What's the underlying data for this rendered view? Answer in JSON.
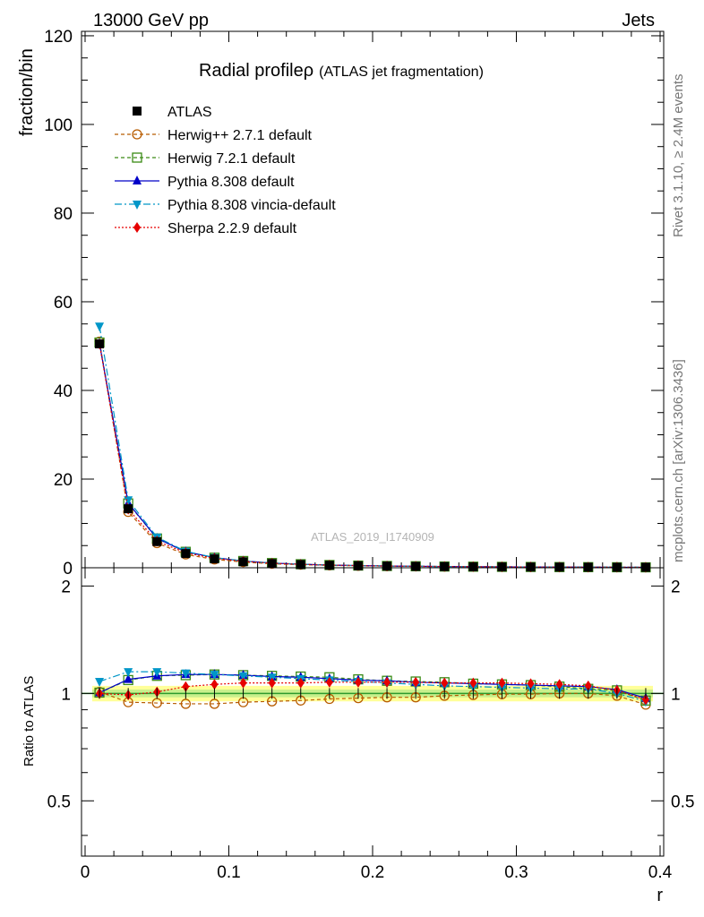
{
  "header": {
    "energy": "13000 GeV pp",
    "process": "Jets"
  },
  "side_labels": {
    "rivet": "Rivet 3.1.10, ≥ 2.4M events",
    "mcplots": "mcplots.cern.ch [arXiv:1306.3436]"
  },
  "watermark": "ATLAS_2019_I1740909",
  "chart_data": {
    "type": "line",
    "title": "Radial profile",
    "title_symbol": "ρ",
    "subtitle": "(ATLAS jet fragmentation)",
    "xlabel": "r",
    "xlim": [
      -0.0025,
      0.4025
    ],
    "x_ticks": [
      "0",
      "0.1",
      "0.2",
      "0.3",
      "0.4"
    ],
    "x": [
      0.01,
      0.03,
      0.05,
      0.07,
      0.09,
      0.11,
      0.13,
      0.15,
      0.17,
      0.19,
      0.21,
      0.23,
      0.25,
      0.27,
      0.29,
      0.31,
      0.33,
      0.35,
      0.37,
      0.39
    ],
    "top": {
      "ylabel": "fraction/bin",
      "ylim": [
        0,
        121
      ],
      "y_ticks": [
        "0",
        "20",
        "40",
        "60",
        "80",
        "100",
        "120"
      ]
    },
    "ratio": {
      "ylabel": "Ratio to ATLAS",
      "ylim": [
        0.35,
        2.25
      ],
      "y_ticks": [
        "0.5",
        "1",
        "2"
      ],
      "band": 0.05
    },
    "series": [
      {
        "name": "ATLAS",
        "color": "#000000",
        "marker": "square-filled",
        "values": [
          50.5,
          13.3,
          5.9,
          3.2,
          2.0,
          1.35,
          0.95,
          0.72,
          0.56,
          0.45,
          0.37,
          0.31,
          0.26,
          0.22,
          0.19,
          0.165,
          0.145,
          0.128,
          0.114,
          0.102
        ],
        "ratio": [
          1,
          1,
          1,
          1,
          1,
          1,
          1,
          1,
          1,
          1,
          1,
          1,
          1,
          1,
          1,
          1,
          1,
          1,
          1,
          1
        ]
      },
      {
        "name": "Herwig++ 2.7.1 default",
        "color": "#b85c00",
        "marker": "circle-open",
        "values": [
          51.0,
          12.6,
          5.56,
          3.0,
          1.88,
          1.28,
          0.9,
          0.69,
          0.54,
          0.44,
          0.36,
          0.3,
          0.26,
          0.22,
          0.19,
          0.165,
          0.145,
          0.128,
          0.112,
          0.095
        ],
        "ratio": [
          1.01,
          0.945,
          0.94,
          0.935,
          0.935,
          0.945,
          0.95,
          0.955,
          0.965,
          0.97,
          0.975,
          0.975,
          0.985,
          0.99,
          0.995,
          0.995,
          1.0,
          1.0,
          0.985,
          0.93
        ]
      },
      {
        "name": "Herwig 7.2.1 default",
        "color": "#3a8a14",
        "marker": "square-open",
        "values": [
          50.8,
          14.5,
          6.6,
          3.6,
          2.27,
          1.52,
          1.06,
          0.8,
          0.62,
          0.49,
          0.4,
          0.34,
          0.28,
          0.24,
          0.205,
          0.18,
          0.155,
          0.136,
          0.116,
          0.098
        ],
        "ratio": [
          1.005,
          1.09,
          1.12,
          1.125,
          1.13,
          1.125,
          1.12,
          1.115,
          1.11,
          1.095,
          1.085,
          1.08,
          1.075,
          1.065,
          1.06,
          1.055,
          1.045,
          1.03,
          1.02,
          0.955
        ]
      },
      {
        "name": "Pythia 8.308 default",
        "color": "#0000c8",
        "marker": "triangle-up",
        "values": [
          50.6,
          14.6,
          6.65,
          3.61,
          2.28,
          1.52,
          1.06,
          0.8,
          0.61,
          0.49,
          0.4,
          0.33,
          0.28,
          0.235,
          0.205,
          0.177,
          0.155,
          0.137,
          0.118,
          0.099
        ],
        "ratio": [
          1.005,
          1.095,
          1.12,
          1.13,
          1.13,
          1.125,
          1.115,
          1.11,
          1.1,
          1.09,
          1.085,
          1.075,
          1.07,
          1.065,
          1.06,
          1.055,
          1.05,
          1.045,
          1.025,
          0.97
        ]
      },
      {
        "name": "Pythia 8.308 vincia-default",
        "color": "#0096c8",
        "marker": "triangle-down",
        "values": [
          54.5,
          15.3,
          6.9,
          3.7,
          2.3,
          1.52,
          1.06,
          0.79,
          0.61,
          0.48,
          0.39,
          0.33,
          0.27,
          0.23,
          0.2,
          0.17,
          0.15,
          0.133,
          0.114,
          0.097
        ],
        "ratio": [
          1.08,
          1.15,
          1.15,
          1.14,
          1.13,
          1.12,
          1.11,
          1.1,
          1.09,
          1.08,
          1.07,
          1.06,
          1.05,
          1.045,
          1.04,
          1.035,
          1.03,
          1.03,
          1.0,
          0.95
        ]
      },
      {
        "name": "Sherpa 2.2.9 default",
        "color": "#e60000",
        "marker": "diamond",
        "values": [
          50.5,
          13.2,
          6.0,
          3.35,
          2.12,
          1.45,
          1.02,
          0.77,
          0.6,
          0.48,
          0.39,
          0.33,
          0.28,
          0.235,
          0.205,
          0.176,
          0.154,
          0.135,
          0.116,
          0.098
        ],
        "ratio": [
          1.0,
          0.99,
          1.01,
          1.045,
          1.06,
          1.07,
          1.07,
          1.07,
          1.075,
          1.075,
          1.075,
          1.075,
          1.07,
          1.07,
          1.07,
          1.065,
          1.06,
          1.05,
          1.02,
          0.96
        ]
      }
    ]
  }
}
